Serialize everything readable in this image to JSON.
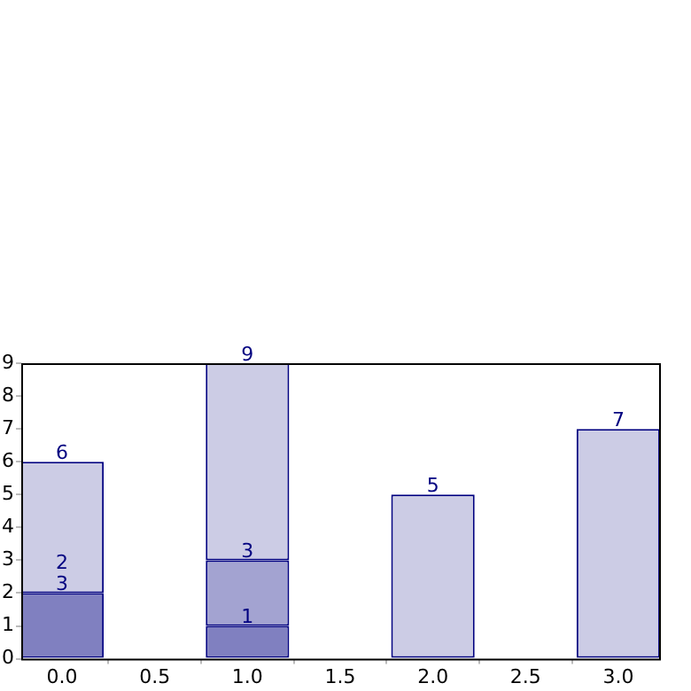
{
  "chart_data": {
    "type": "bar",
    "stacked": true,
    "x": [
      0,
      1,
      2,
      3
    ],
    "series": [
      {
        "color": "#8080c0",
        "values": [
          2,
          1,
          null,
          null
        ]
      },
      {
        "color": "#a3a3d1",
        "values": [
          null,
          2,
          null,
          null
        ]
      },
      {
        "color": "#ccccE5",
        "values": [
          4,
          6,
          5,
          7
        ]
      }
    ],
    "annotations": [
      {
        "text": "6",
        "x": 0,
        "y": 6
      },
      {
        "text": "3",
        "x": 0,
        "y": 2
      },
      {
        "text": "2",
        "x": 0,
        "y": 2
      },
      {
        "text": "9",
        "x": 1,
        "y": 9
      },
      {
        "text": "3",
        "x": 1,
        "y": 3
      },
      {
        "text": "1",
        "x": 1,
        "y": 1
      },
      {
        "text": "5",
        "x": 2,
        "y": 5
      },
      {
        "text": "7",
        "x": 3,
        "y": 7
      }
    ],
    "xlim": [
      -0.22,
      3.22
    ],
    "xticks": [
      {
        "value": 0,
        "label": "0.0"
      },
      {
        "value": 0.5,
        "label": "0.5"
      },
      {
        "value": 1,
        "label": "1.0"
      },
      {
        "value": 1.5,
        "label": "1.5"
      },
      {
        "value": 2,
        "label": "2.0"
      },
      {
        "value": 2.5,
        "label": "2.5"
      },
      {
        "value": 3,
        "label": "3.0"
      }
    ],
    "ylim": [
      0,
      9
    ],
    "yticks": [
      0,
      1,
      2,
      3,
      4,
      5,
      6,
      7,
      8,
      9
    ],
    "grid": false,
    "legend": false
  }
}
